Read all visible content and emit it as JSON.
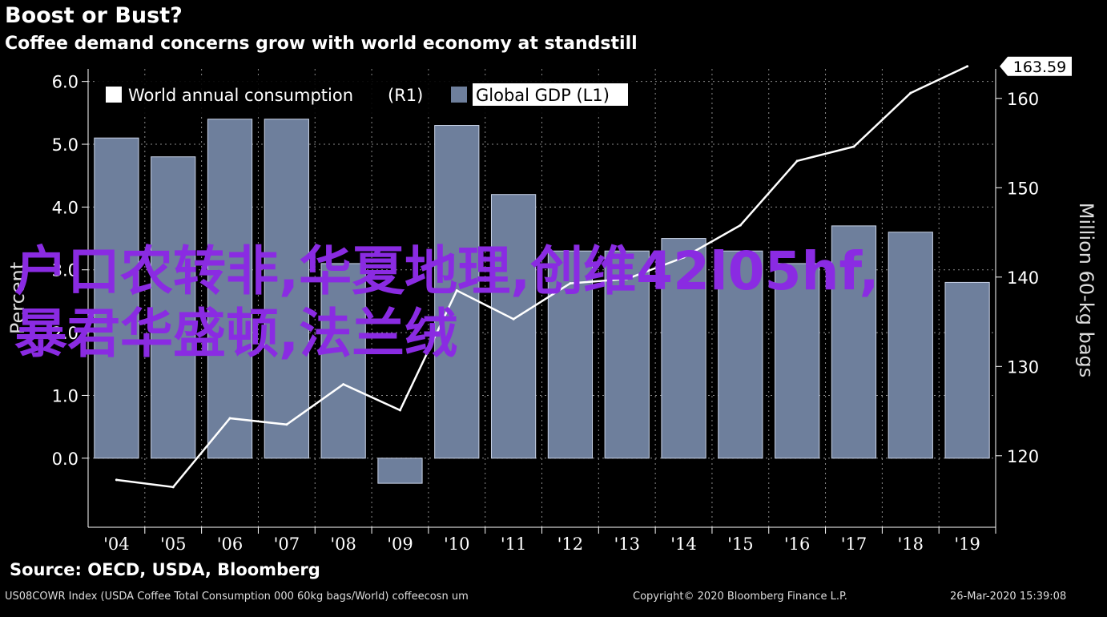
{
  "header": {
    "title": "Boost or Bust?",
    "subtitle": "Coffee demand concerns grow with world economy at standstill"
  },
  "footer": {
    "source": "Source: OECD, USDA, Bloomberg",
    "index_note": "US08COWR Index (USDA Coffee Total Consumption 000 60kg bags/World) coffeecosn um",
    "copyright": "Copyright© 2020 Bloomberg Finance L.P.",
    "timestamp": "26-Mar-2020 15:39:08"
  },
  "overlay_text": "户口农转非,华夏地理,创维42l05hf,暴君华盛顿,法兰绒",
  "colors": {
    "background": "#000000",
    "bar": "#6e7f9c",
    "line": "#ffffff",
    "grid": "#8a8a8a",
    "overlay": "#8a2be2"
  },
  "chart_data": {
    "type": "bar+line",
    "categories": [
      "'04",
      "'05",
      "'06",
      "'07",
      "'08",
      "'09",
      "'10",
      "'11",
      "'12",
      "'13",
      "'14",
      "'15",
      "'16",
      "'17",
      "'18",
      "'19"
    ],
    "series": [
      {
        "name": "Global GDP (L1)",
        "type": "bar",
        "axis": "left",
        "values": [
          5.1,
          4.8,
          5.4,
          5.4,
          3.1,
          -0.4,
          5.3,
          4.2,
          3.3,
          3.3,
          3.5,
          3.3,
          3.1,
          3.7,
          3.6,
          2.8
        ]
      },
      {
        "name": "World annual consumption (R1)",
        "type": "line",
        "axis": "right",
        "values": [
          117.3,
          116.5,
          124.2,
          123.5,
          128.0,
          125.1,
          138.5,
          135.3,
          139.3,
          139.8,
          142.2,
          145.8,
          153.0,
          154.6,
          160.6,
          163.59
        ]
      }
    ],
    "left_axis": {
      "label": "Percent",
      "ylim": [
        -1.1,
        6.2
      ],
      "ticks": [
        "6.0",
        "5.0",
        "4.0",
        "3.0",
        "2.0",
        "1.0",
        "0.0"
      ]
    },
    "right_axis": {
      "label": "Million 60-kg bags",
      "ylim": [
        112,
        163.3
      ],
      "ticks": [
        "160",
        "150",
        "140",
        "130",
        "120"
      ]
    },
    "last_value_label": "163.59",
    "legend": {
      "position": "top-left",
      "entries": [
        "World annual consumption",
        "(R1)",
        "Global GDP (L1)"
      ]
    },
    "grid": true
  }
}
